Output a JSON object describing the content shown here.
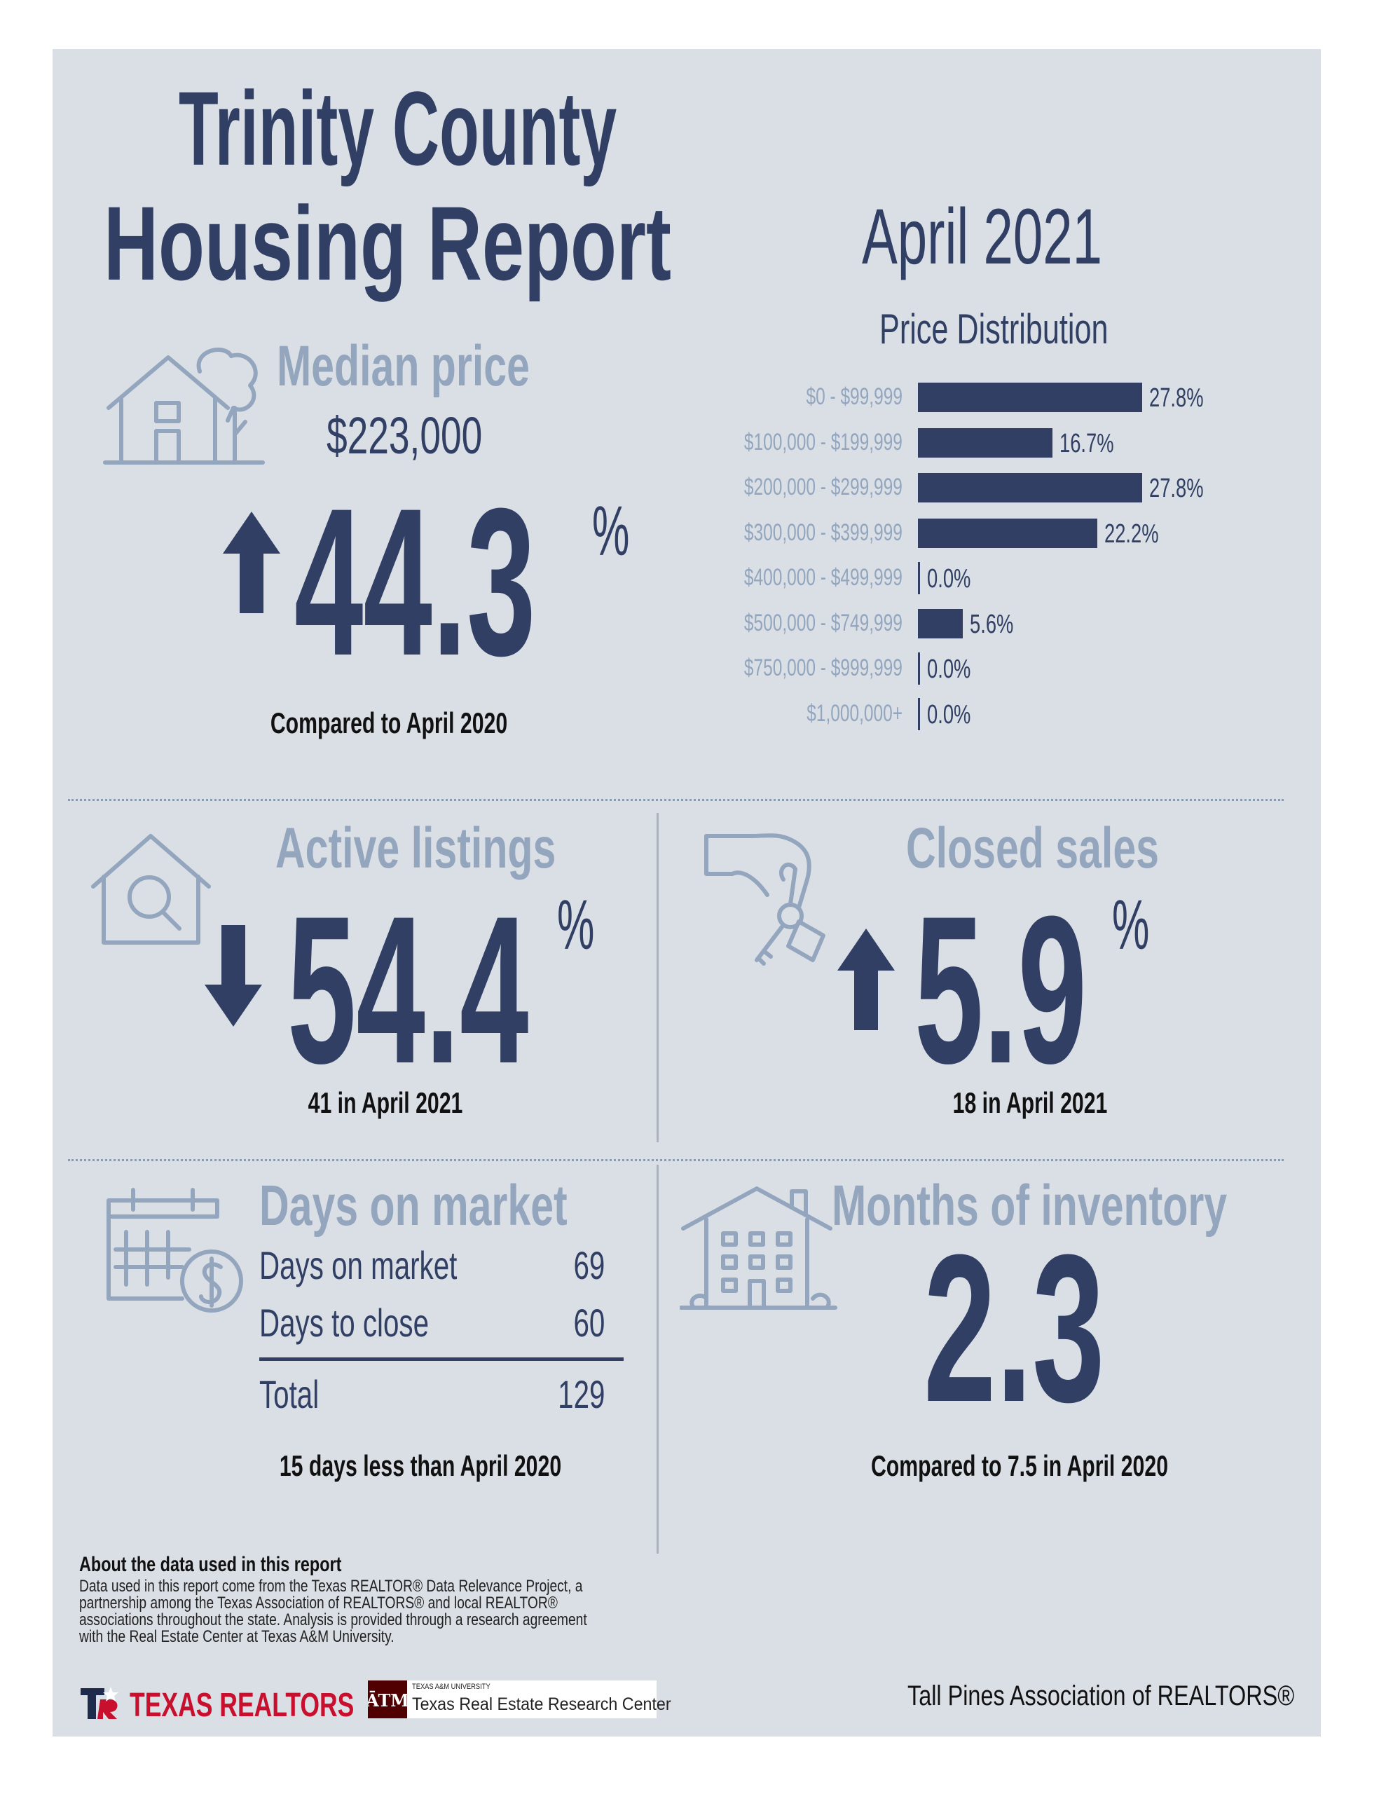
{
  "header": {
    "title_line1": "Trinity County",
    "title_line2": "Housing Report",
    "period": "April 2021"
  },
  "median_price": {
    "title": "Median price",
    "value": "$223,000",
    "change": "44.3",
    "percent_sign": "%",
    "direction": "up",
    "comparison": "Compared to April 2020"
  },
  "price_distribution": {
    "title": "Price Distribution"
  },
  "chart_data": {
    "type": "bar",
    "orientation": "horizontal",
    "title": "Price Distribution",
    "categories": [
      "$0 - $99,999",
      "$100,000 - $199,999",
      "$200,000 - $299,999",
      "$300,000 - $399,999",
      "$400,000 - $499,999",
      "$500,000 - $749,999",
      "$750,000 - $999,999",
      "$1,000,000+"
    ],
    "values": [
      27.8,
      16.7,
      27.8,
      22.2,
      0.0,
      5.6,
      0.0,
      0.0
    ],
    "value_labels": [
      "27.8%",
      "16.7%",
      "27.8%",
      "22.2%",
      "0.0%",
      "5.6%",
      "0.0%",
      "0.0%"
    ],
    "xlim": [
      0,
      27.8
    ],
    "grid": false,
    "bar_color": "#303f63"
  },
  "active_listings": {
    "title": "Active listings",
    "change": "54.4",
    "percent_sign": "%",
    "direction": "down",
    "detail": "41 in April 2021"
  },
  "closed_sales": {
    "title": "Closed sales",
    "change": "5.9",
    "percent_sign": "%",
    "direction": "up",
    "detail": "18 in April 2021"
  },
  "days_on_market": {
    "title": "Days on market",
    "rows": [
      {
        "label": "Days on market",
        "value": "69"
      },
      {
        "label": "Days to close",
        "value": "60"
      }
    ],
    "total_label": "Total",
    "total_value": "129",
    "comparison": "15 days less than April 2020"
  },
  "months_inventory": {
    "title": "Months of inventory",
    "value": "2.3",
    "comparison": "Compared to 7.5 in April 2020"
  },
  "footer": {
    "about_title": "About the data used in this report",
    "about_lines": [
      "Data used in this report come from the Texas REALTOR® Data Relevance Project, a",
      "partnership among the Texas Association of REALTORS® and local REALTOR®",
      "associations throughout the state. Analysis is provided through a research agreement",
      "with the Real Estate Center at Texas A&M University."
    ],
    "texas_realtors_logo": "TEXAS REALTORS",
    "tamu_small": "TEXAS A&M UNIVERSITY",
    "tamu_name": "Texas Real Estate Research Center",
    "association": "Tall Pines Association of REALTORS®"
  },
  "colors": {
    "navy": "#303f63",
    "light_blue_grey": "#93a6bd",
    "panel_bg": "#dadfe6",
    "texas_red": "#c8102e",
    "tamu_maroon": "#500000"
  }
}
